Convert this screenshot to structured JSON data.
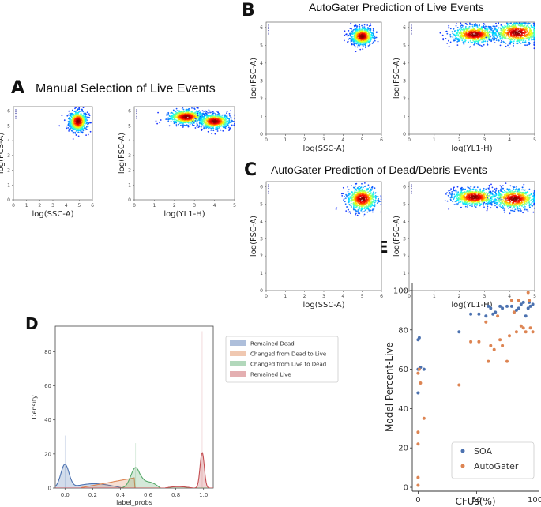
{
  "panels": {
    "A": {
      "letter": "A",
      "title": "Manual Selection of Live Events"
    },
    "B": {
      "letter": "B",
      "title": "AutoGater Prediction of Live Events"
    },
    "C": {
      "letter": "C",
      "title": "AutoGater Prediction of Dead/Debris Events"
    },
    "D": {
      "letter": "D"
    },
    "E": {
      "letter": "E"
    }
  },
  "chart_data": [
    {
      "id": "A-left",
      "type": "scatter",
      "panel": "A",
      "xlabel": "log(SSC-A)",
      "ylabel": "log(FCS-A)",
      "xlim": [
        0,
        6
      ],
      "ylim": [
        0,
        6.3
      ],
      "xticks": [
        "0",
        "1",
        "2",
        "3",
        "4",
        "5",
        "6"
      ],
      "yticks": [
        "0",
        "1",
        "2",
        "3",
        "4",
        "5",
        "6"
      ],
      "clusters": [
        {
          "cx": 4.9,
          "cy": 5.3,
          "sx": 0.35,
          "sy": 0.35
        }
      ]
    },
    {
      "id": "A-right",
      "type": "scatter",
      "panel": "A",
      "xlabel": "log(YL1-H)",
      "ylabel": "log(FSC-A)",
      "xlim": [
        0,
        5
      ],
      "ylim": [
        0,
        6.3
      ],
      "xticks": [
        "0",
        "1",
        "2",
        "3",
        "4",
        "5"
      ],
      "yticks": [
        "0",
        "1",
        "2",
        "3",
        "4",
        "5",
        "6"
      ],
      "clusters": [
        {
          "cx": 2.6,
          "cy": 5.6,
          "sx": 0.45,
          "sy": 0.25
        },
        {
          "cx": 4.0,
          "cy": 5.3,
          "sx": 0.4,
          "sy": 0.25
        }
      ]
    },
    {
      "id": "B-left",
      "type": "scatter",
      "panel": "B",
      "xlabel": "log(SSC-A)",
      "ylabel": "log(FSC-A)",
      "xlim": [
        0,
        6
      ],
      "ylim": [
        0,
        6.3
      ],
      "xticks": [
        "0",
        "1",
        "2",
        "3",
        "4",
        "5",
        "6"
      ],
      "yticks": [
        "0",
        "1",
        "2",
        "3",
        "4",
        "5",
        "6"
      ],
      "clusters": [
        {
          "cx": 5.0,
          "cy": 5.5,
          "sx": 0.3,
          "sy": 0.25
        }
      ]
    },
    {
      "id": "B-right",
      "type": "scatter",
      "panel": "B",
      "xlabel": "log(YL1-H)",
      "ylabel": "log(FSC-A)",
      "xlim": [
        0,
        5
      ],
      "ylim": [
        0,
        6.3
      ],
      "xticks": [
        "0",
        "1",
        "2",
        "3",
        "4",
        "5"
      ],
      "yticks": [
        "0",
        "1",
        "2",
        "3",
        "4",
        "5",
        "6"
      ],
      "clusters": [
        {
          "cx": 2.6,
          "cy": 5.6,
          "sx": 0.45,
          "sy": 0.25
        },
        {
          "cx": 4.3,
          "cy": 5.7,
          "sx": 0.5,
          "sy": 0.3
        }
      ]
    },
    {
      "id": "C-left",
      "type": "scatter",
      "panel": "C",
      "xlabel": "log(SSC-A)",
      "ylabel": "log(FSC-A)",
      "xlim": [
        0,
        6
      ],
      "ylim": [
        0,
        6.3
      ],
      "xticks": [
        "0",
        "1",
        "2",
        "3",
        "4",
        "5",
        "6"
      ],
      "yticks": [
        "0",
        "1",
        "2",
        "3",
        "4",
        "5",
        "6"
      ],
      "clusters": [
        {
          "cx": 5.0,
          "cy": 5.3,
          "sx": 0.4,
          "sy": 0.35
        }
      ]
    },
    {
      "id": "C-right",
      "type": "scatter",
      "panel": "C",
      "xlabel": "log(YL1-H)",
      "ylabel": "log(FSC-A)",
      "xlim": [
        0,
        5
      ],
      "ylim": [
        0,
        6.3
      ],
      "xticks": [
        "0",
        "1",
        "2",
        "3",
        "4",
        "5"
      ],
      "yticks": [
        "0",
        "1",
        "2",
        "3",
        "4",
        "5",
        "6"
      ],
      "clusters": [
        {
          "cx": 2.6,
          "cy": 5.4,
          "sx": 0.45,
          "sy": 0.25
        },
        {
          "cx": 4.2,
          "cy": 5.3,
          "sx": 0.45,
          "sy": 0.3
        }
      ]
    },
    {
      "id": "D",
      "type": "area",
      "panel": "D",
      "xlabel": "label_probs",
      "ylabel": "Density",
      "xlim": [
        -0.07,
        1.07
      ],
      "ylim": [
        0,
        95
      ],
      "xticks": [
        0.0,
        0.2,
        0.4,
        0.6,
        0.8,
        1.0
      ],
      "xticklabels": [
        "0.0",
        "0.2",
        "0.4",
        "0.6",
        "0.8",
        "1.0"
      ],
      "yticks": [
        0,
        20,
        40,
        60,
        80
      ],
      "legend_position": "upper-right",
      "series": [
        {
          "name": "Remained Dead",
          "color": "#4c72b0",
          "peaks": [
            {
              "mu": 0.0,
              "sd": 0.03,
              "h": 14
            }
          ],
          "tail": {
            "from": 0.03,
            "to": 0.5,
            "h": 3
          }
        },
        {
          "name": "Changed from Dead to Live",
          "color": "#dd8452",
          "ramp": {
            "from": 0.12,
            "to": 0.5,
            "h0": 0.3,
            "h1": 6
          }
        },
        {
          "name": "Changed from Live to Dead",
          "color": "#55a868",
          "peaks": [
            {
              "mu": 0.51,
              "sd": 0.035,
              "h": 12
            }
          ],
          "tail": {
            "from": 0.54,
            "to": 0.72,
            "h": 4
          }
        },
        {
          "name": "Remained Live",
          "color": "#c44e52",
          "peaks": [
            {
              "mu": 0.99,
              "sd": 0.015,
              "h": 21
            }
          ],
          "tail": {
            "from": 0.72,
            "to": 0.97,
            "h": 1
          }
        }
      ]
    },
    {
      "id": "E",
      "type": "scatter",
      "panel": "E",
      "xlabel": "CFUs(%)",
      "ylabel": "Model Percent-Live",
      "xlim": [
        -5,
        103
      ],
      "ylim": [
        -2,
        104
      ],
      "xticks": [
        0,
        50,
        100
      ],
      "yticks": [
        0,
        20,
        40,
        60,
        80,
        100
      ],
      "legend_position": "lower-right",
      "series": [
        {
          "name": "SOA",
          "color": "#4c72b0",
          "x": [
            0,
            0,
            0,
            1,
            2,
            5,
            35,
            45,
            52,
            58,
            60,
            62,
            64,
            66,
            70,
            72,
            76,
            80,
            82,
            84,
            86,
            88,
            90,
            92,
            94,
            95,
            96,
            98
          ],
          "y": [
            48,
            60,
            75,
            76,
            61,
            60,
            79,
            88,
            88,
            87,
            92,
            91,
            88,
            89,
            92,
            91,
            92,
            92,
            89,
            90,
            91,
            93,
            94,
            87,
            91,
            94,
            92,
            93
          ]
        },
        {
          "name": "AutoGater",
          "color": "#dd8452",
          "x": [
            0,
            0,
            0,
            0,
            0,
            1,
            2,
            5,
            35,
            45,
            52,
            58,
            60,
            62,
            65,
            68,
            70,
            72,
            76,
            78,
            80,
            82,
            84,
            86,
            88,
            90,
            92,
            94,
            95,
            96,
            98
          ],
          "y": [
            1,
            5,
            22,
            28,
            58,
            60,
            53,
            35,
            52,
            74,
            74,
            84,
            64,
            72,
            70,
            87,
            75,
            72,
            64,
            77,
            95,
            89,
            79,
            95,
            82,
            81,
            79,
            99,
            95,
            81,
            79
          ]
        }
      ]
    }
  ]
}
